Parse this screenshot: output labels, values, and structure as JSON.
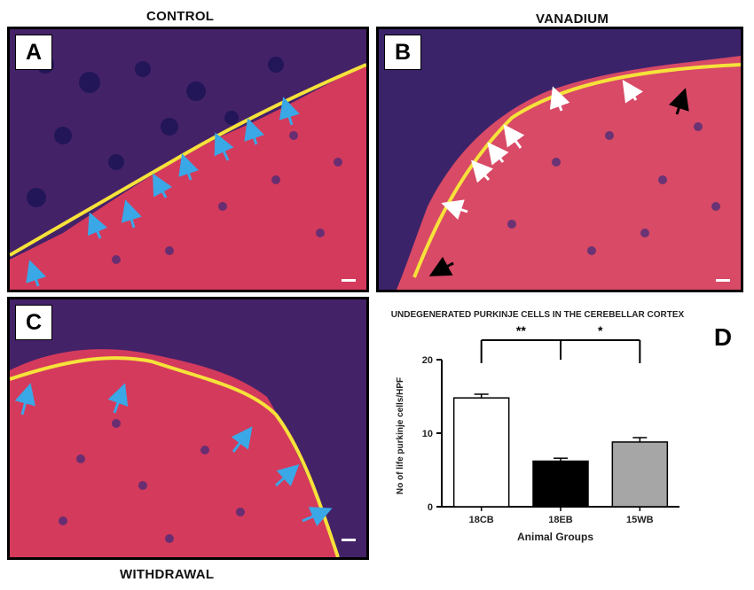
{
  "panel_titles": {
    "a": "CONTROL",
    "b": "VANADIUM",
    "c": "WITHDRAWAL"
  },
  "panel_labels": {
    "a": "A",
    "b": "B",
    "c": "C",
    "d": "D"
  },
  "colors": {
    "tissue": "#d43a5c",
    "nuclei": "#2a1f6a",
    "gap": "#f6e23a",
    "blue_arrow": "#3aa7e6",
    "white_arrow": "#ffffff",
    "black_arrow": "#000000"
  },
  "chart_data": {
    "type": "bar",
    "title": "UNDEGENERATED PURKINJE CELLS IN THE CEREBELLAR CORTEX",
    "xlabel": "Animal Groups",
    "ylabel": "No of life purkinje cells/HPF",
    "categories": [
      "18CB",
      "18EB",
      "15WB"
    ],
    "values": [
      14.8,
      6.2,
      8.8
    ],
    "errors": [
      0.5,
      0.4,
      0.6
    ],
    "bar_colors": [
      "#ffffff",
      "#000000",
      "#a6a6a6"
    ],
    "ylim": [
      0,
      20
    ],
    "yticks": [
      0,
      10,
      20
    ],
    "significance": [
      "**",
      "*"
    ],
    "grid": false
  }
}
